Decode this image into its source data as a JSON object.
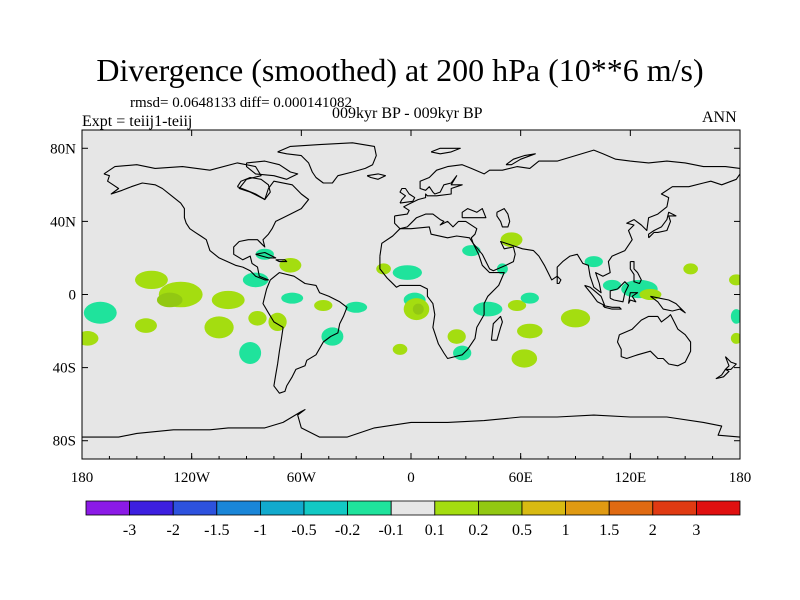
{
  "title": "Divergence (smoothed) at 200 hPa (10**6 m/s)",
  "stats": "rmsd= 0.0648133 diff= 0.000141082",
  "experiment": "Expt = teiij1-teiij",
  "period": "009kyr BP - 009kyr BP",
  "season": "ANN",
  "chart_data": {
    "type": "heatmap",
    "projection": "cylindrical equidistant",
    "xlim": [
      -180,
      180
    ],
    "ylim": [
      -90,
      90
    ],
    "x_ticks": [
      {
        "value": -180,
        "label": "180"
      },
      {
        "value": -120,
        "label": "120W"
      },
      {
        "value": -60,
        "label": "60W"
      },
      {
        "value": 0,
        "label": "0"
      },
      {
        "value": 60,
        "label": "60E"
      },
      {
        "value": 120,
        "label": "120E"
      },
      {
        "value": 180,
        "label": "180"
      }
    ],
    "y_ticks": [
      {
        "value": 80,
        "label": "80N"
      },
      {
        "value": 40,
        "label": "40N"
      },
      {
        "value": 0,
        "label": "0"
      },
      {
        "value": -40,
        "label": "40S"
      },
      {
        "value": -80,
        "label": "80S"
      }
    ],
    "colorbar": {
      "labels": [
        "-3",
        "-2",
        "-1.5",
        "-1",
        "-0.5",
        "-0.2",
        "-0.1",
        "0.1",
        "0.2",
        "0.5",
        "1",
        "1.5",
        "2",
        "3"
      ],
      "colors": [
        "#8b1ae6",
        "#3d1fe0",
        "#2d52de",
        "#1a86d8",
        "#12aacd",
        "#12c9c4",
        "#1fe39c",
        "#e6e6e6",
        "#a4dd10",
        "#92c812",
        "#d8ba12",
        "#e09a12",
        "#e06a12",
        "#e03a12",
        "#e01010"
      ]
    },
    "anomaly_regions": [
      {
        "lon": -142,
        "lat": 8,
        "rlon": 9,
        "rlat": 5,
        "class": "0.1 to 0.2"
      },
      {
        "lon": -126,
        "lat": 0,
        "rlon": 12,
        "rlat": 7,
        "class": "0.1 to 0.2"
      },
      {
        "lon": -132,
        "lat": -3,
        "rlon": 7,
        "rlat": 4,
        "class": "0.2 to 0.5"
      },
      {
        "lon": -100,
        "lat": -3,
        "rlon": 9,
        "rlat": 5,
        "class": "0.1 to 0.2"
      },
      {
        "lon": -85,
        "lat": 8,
        "rlon": 7,
        "rlat": 4,
        "class": "-0.2 to -0.1"
      },
      {
        "lon": -66,
        "lat": 16,
        "rlon": 6,
        "rlat": 4,
        "class": "0.1 to 0.2"
      },
      {
        "lon": -80,
        "lat": 22,
        "rlon": 5,
        "rlat": 3,
        "class": "-0.2 to -0.1"
      },
      {
        "lon": -84,
        "lat": -13,
        "rlon": 5,
        "rlat": 4,
        "class": "0.1 to 0.2"
      },
      {
        "lon": -65,
        "lat": -2,
        "rlon": 6,
        "rlat": 3,
        "class": "-0.2 to -0.1"
      },
      {
        "lon": -48,
        "lat": -6,
        "rlon": 5,
        "rlat": 3,
        "class": "0.1 to 0.2"
      },
      {
        "lon": -30,
        "lat": -7,
        "rlon": 6,
        "rlat": 3,
        "class": "-0.2 to -0.1"
      },
      {
        "lon": -170,
        "lat": -10,
        "rlon": 9,
        "rlat": 6,
        "class": "-0.2 to -0.1"
      },
      {
        "lon": -177,
        "lat": -24,
        "rlon": 6,
        "rlat": 4,
        "class": "0.1 to 0.2"
      },
      {
        "lon": -145,
        "lat": -17,
        "rlon": 6,
        "rlat": 4,
        "class": "0.1 to 0.2"
      },
      {
        "lon": -105,
        "lat": -18,
        "rlon": 8,
        "rlat": 6,
        "class": "0.1 to 0.2"
      },
      {
        "lon": -88,
        "lat": -32,
        "rlon": 6,
        "rlat": 6,
        "class": "-0.2 to -0.1"
      },
      {
        "lon": -73,
        "lat": -15,
        "rlon": 5,
        "rlat": 5,
        "class": "0.1 to 0.2"
      },
      {
        "lon": -43,
        "lat": -23,
        "rlon": 6,
        "rlat": 5,
        "class": "-0.2 to -0.1"
      },
      {
        "lon": -2,
        "lat": 12,
        "rlon": 8,
        "rlat": 4,
        "class": "-0.2 to -0.1"
      },
      {
        "lon": -15,
        "lat": 14,
        "rlon": 4,
        "rlat": 3,
        "class": "0.1 to 0.2"
      },
      {
        "lon": 33,
        "lat": 24,
        "rlon": 5,
        "rlat": 3,
        "class": "-0.2 to -0.1"
      },
      {
        "lon": 2,
        "lat": -3,
        "rlon": 6,
        "rlat": 4,
        "class": "-0.2 to -0.1"
      },
      {
        "lon": 3,
        "lat": -8,
        "rlon": 7,
        "rlat": 6,
        "class": "0.1 to 0.2"
      },
      {
        "lon": 4,
        "lat": -8,
        "rlon": 3,
        "rlat": 3,
        "class": "0.2 to 0.5"
      },
      {
        "lon": 25,
        "lat": -23,
        "rlon": 5,
        "rlat": 4,
        "class": "0.1 to 0.2"
      },
      {
        "lon": -6,
        "lat": -30,
        "rlon": 4,
        "rlat": 3,
        "class": "0.1 to 0.2"
      },
      {
        "lon": 28,
        "lat": -32,
        "rlon": 5,
        "rlat": 4,
        "class": "-0.2 to -0.1"
      },
      {
        "lon": 42,
        "lat": -8,
        "rlon": 8,
        "rlat": 4,
        "class": "-0.2 to -0.1"
      },
      {
        "lon": 55,
        "lat": 30,
        "rlon": 6,
        "rlat": 4,
        "class": "0.1 to 0.2"
      },
      {
        "lon": 50,
        "lat": 14,
        "rlon": 3,
        "rlat": 3,
        "class": "-0.2 to -0.1"
      },
      {
        "lon": 58,
        "lat": -6,
        "rlon": 5,
        "rlat": 3,
        "class": "0.1 to 0.2"
      },
      {
        "lon": 65,
        "lat": -2,
        "rlon": 5,
        "rlat": 3,
        "class": "-0.2 to -0.1"
      },
      {
        "lon": 90,
        "lat": -13,
        "rlon": 8,
        "rlat": 5,
        "class": "0.1 to 0.2"
      },
      {
        "lon": 65,
        "lat": -20,
        "rlon": 7,
        "rlat": 4,
        "class": "0.1 to 0.2"
      },
      {
        "lon": 62,
        "lat": -35,
        "rlon": 7,
        "rlat": 5,
        "class": "0.1 to 0.2"
      },
      {
        "lon": 100,
        "lat": 18,
        "rlon": 5,
        "rlat": 3,
        "class": "-0.2 to -0.1"
      },
      {
        "lon": 110,
        "lat": 5,
        "rlon": 5,
        "rlat": 3,
        "class": "-0.2 to -0.1"
      },
      {
        "lon": 125,
        "lat": 3,
        "rlon": 10,
        "rlat": 5,
        "class": "-0.2 to -0.1"
      },
      {
        "lon": 131,
        "lat": 0,
        "rlon": 6,
        "rlat": 3,
        "class": "0.1 to 0.2"
      },
      {
        "lon": 153,
        "lat": 14,
        "rlon": 4,
        "rlat": 3,
        "class": "0.1 to 0.2"
      },
      {
        "lon": 178,
        "lat": 8,
        "rlon": 4,
        "rlat": 3,
        "class": "0.1 to 0.2"
      },
      {
        "lon": 178,
        "lat": -12,
        "rlon": 3,
        "rlat": 4,
        "class": "-0.2 to -0.1"
      },
      {
        "lon": 178,
        "lat": -24,
        "rlon": 3,
        "rlat": 3,
        "class": "0.1 to 0.2"
      }
    ]
  }
}
